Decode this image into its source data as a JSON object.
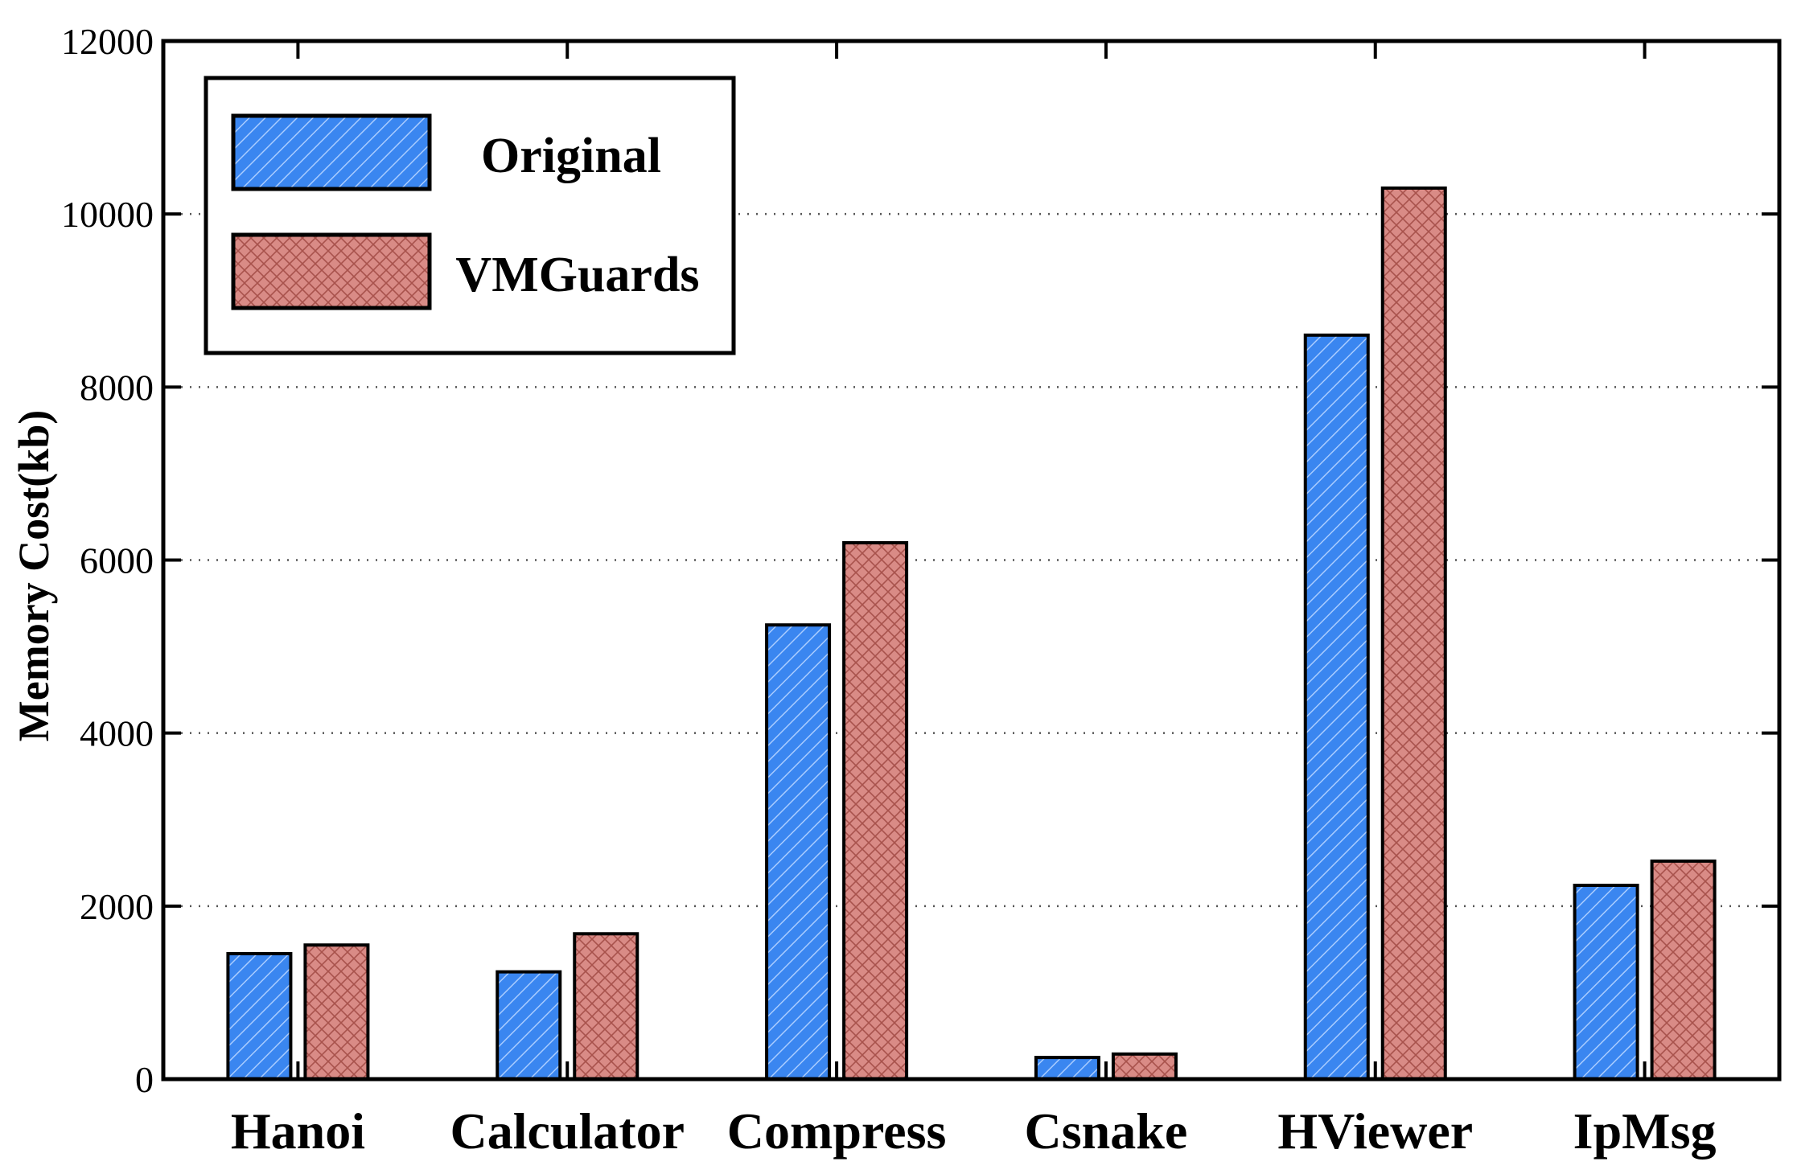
{
  "chart_data": {
    "type": "bar",
    "title": "",
    "xlabel": "",
    "ylabel": "Memory Cost(kb)",
    "ylim": [
      0,
      12000
    ],
    "yticks": [
      0,
      2000,
      4000,
      6000,
      8000,
      10000,
      12000
    ],
    "grid": "horizontal dotted",
    "legend_position": "top-left",
    "categories": [
      "Hanoi",
      "Calculator",
      "Compress",
      "Csnake",
      "HViewer",
      "IpMsg"
    ],
    "series": [
      {
        "name": "Original",
        "values": [
          1450,
          1240,
          5250,
          250,
          8600,
          2240
        ],
        "color": "#3a86f0",
        "pattern": "diagonal-hatch"
      },
      {
        "name": "VMGuards",
        "values": [
          1550,
          1680,
          6200,
          290,
          10300,
          2520
        ],
        "color": "#d98b86",
        "pattern": "cross-hatch"
      }
    ]
  }
}
